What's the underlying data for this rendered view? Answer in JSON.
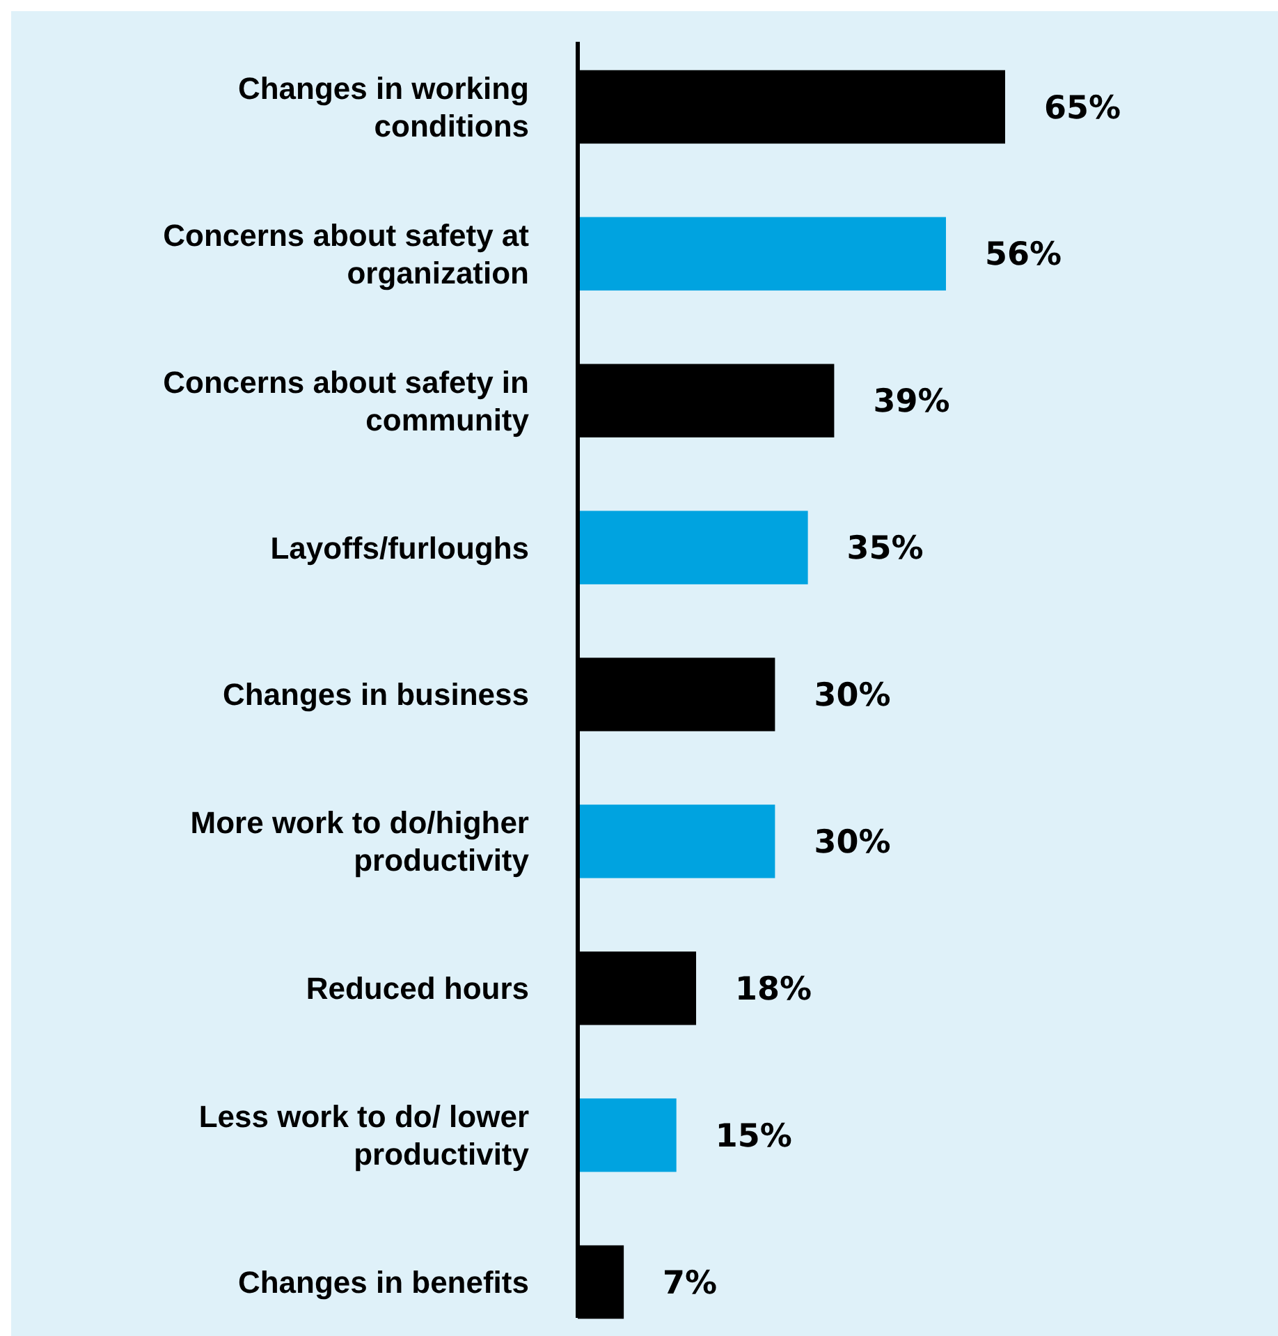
{
  "chart_data": {
    "type": "bar",
    "orientation": "horizontal",
    "categories": [
      "Changes in working conditions",
      "Concerns about safety at organization",
      "Concerns about safety in community",
      "Layoffs/furloughs",
      "Changes in business",
      "More work to do/higher productivity",
      "Reduced hours",
      "Less work to do/ lower productivity",
      "Changes in benefits"
    ],
    "values": [
      65,
      56,
      39,
      35,
      30,
      30,
      18,
      15,
      7
    ],
    "value_labels": [
      "65%",
      "56%",
      "39%",
      "35%",
      "30%",
      "30%",
      "18%",
      "15%",
      "7%"
    ],
    "colors": [
      "#000000",
      "#00a3e0",
      "#000000",
      "#00a3e0",
      "#000000",
      "#00a3e0",
      "#000000",
      "#00a3e0",
      "#000000"
    ]
  }
}
